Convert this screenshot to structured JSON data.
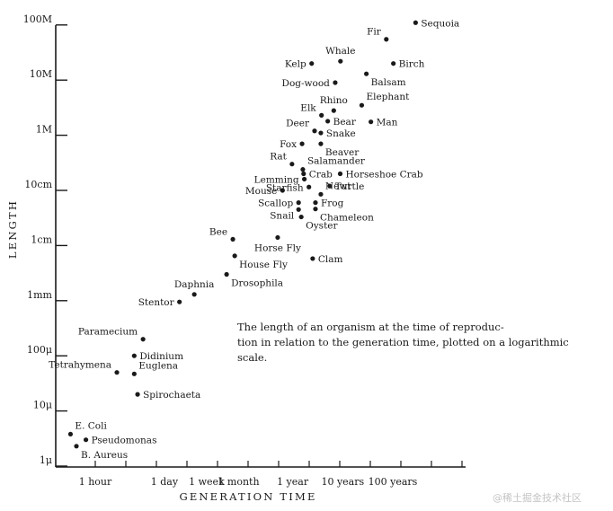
{
  "chart_data": {
    "type": "scatter",
    "xlabel": "GENERATION TIME",
    "ylabel": "LENGTH",
    "xscale": "log",
    "yscale": "log",
    "xlim_hours": [
      0.3,
      1500000
    ],
    "ylim_meters": [
      1e-06,
      100
    ],
    "x_ticks": [
      {
        "label": "1 hour",
        "hours": 1
      },
      {
        "label": "1 day",
        "hours": 24
      },
      {
        "label": "1 week",
        "hours": 168
      },
      {
        "label": "1 month",
        "hours": 730
      },
      {
        "label": "1 year",
        "hours": 8760
      },
      {
        "label": "10 years",
        "hours": 87600
      },
      {
        "label": "100 years",
        "hours": 876000
      }
    ],
    "y_ticks": [
      {
        "label": "1μ",
        "meters": 1e-06
      },
      {
        "label": "10μ",
        "meters": 1e-05
      },
      {
        "label": "100μ",
        "meters": 0.0001
      },
      {
        "label": "1mm",
        "meters": 0.001
      },
      {
        "label": "1cm",
        "meters": 0.01
      },
      {
        "label": "10cm",
        "meters": 0.1
      },
      {
        "label": "1M",
        "meters": 1
      },
      {
        "label": "10M",
        "meters": 10
      },
      {
        "label": "100M",
        "meters": 100
      }
    ],
    "points": [
      {
        "name": "Sequoia",
        "hours": 2500000,
        "meters": 110,
        "label_pos": "right"
      },
      {
        "name": "Fir",
        "hours": 650000,
        "meters": 55,
        "label_pos": "left-up"
      },
      {
        "name": "Birch",
        "hours": 900000,
        "meters": 20,
        "label_pos": "right"
      },
      {
        "name": "Whale",
        "hours": 79000,
        "meters": 22,
        "label_pos": "above"
      },
      {
        "name": "Kelp",
        "hours": 21000,
        "meters": 20,
        "label_pos": "left"
      },
      {
        "name": "Balsam",
        "hours": 260000,
        "meters": 13,
        "label_pos": "right-down"
      },
      {
        "name": "Dog-wood",
        "hours": 62000,
        "meters": 9,
        "label_pos": "left"
      },
      {
        "name": "Elephant",
        "hours": 210000,
        "meters": 3.5,
        "label_pos": "right-up"
      },
      {
        "name": "Rhino",
        "hours": 58000,
        "meters": 2.8,
        "label_pos": "above"
      },
      {
        "name": "Elk",
        "hours": 33000,
        "meters": 2.3,
        "label_pos": "left-up"
      },
      {
        "name": "Bear",
        "hours": 44000,
        "meters": 1.8,
        "label_pos": "right"
      },
      {
        "name": "Man",
        "hours": 320000,
        "meters": 1.75,
        "label_pos": "right"
      },
      {
        "name": "Deer",
        "hours": 24000,
        "meters": 1.2,
        "label_pos": "left-up"
      },
      {
        "name": "Snake",
        "hours": 32000,
        "meters": 1.1,
        "label_pos": "right"
      },
      {
        "name": "Fox",
        "hours": 13500,
        "meters": 0.7,
        "label_pos": "left"
      },
      {
        "name": "Beaver",
        "hours": 32000,
        "meters": 0.7,
        "label_pos": "right-down"
      },
      {
        "name": "Rat",
        "hours": 8500,
        "meters": 0.3,
        "label_pos": "left-up"
      },
      {
        "name": "Salamander",
        "hours": 14000,
        "meters": 0.24,
        "label_pos": "right-up"
      },
      {
        "name": "Crab",
        "hours": 14500,
        "meters": 0.2,
        "label_pos": "right"
      },
      {
        "name": "Horseshoe Crab",
        "hours": 78000,
        "meters": 0.2,
        "label_pos": "right"
      },
      {
        "name": "Lemming",
        "hours": 15000,
        "meters": 0.16,
        "label_pos": "left"
      },
      {
        "name": "Turtle",
        "hours": 48000,
        "meters": 0.12,
        "label_pos": "right"
      },
      {
        "name": "Starfish",
        "hours": 18500,
        "meters": 0.115,
        "label_pos": "left"
      },
      {
        "name": "Mouse",
        "hours": 5500,
        "meters": 0.1,
        "label_pos": "left"
      },
      {
        "name": "Newt",
        "hours": 32000,
        "meters": 0.085,
        "label_pos": "right-up"
      },
      {
        "name": "Scallop",
        "hours": 11500,
        "meters": 0.06,
        "label_pos": "left"
      },
      {
        "name": "Frog",
        "hours": 25000,
        "meters": 0.06,
        "label_pos": "right"
      },
      {
        "name": "Snail",
        "hours": 11500,
        "meters": 0.045,
        "label_pos": "left-down"
      },
      {
        "name": "Chameleon",
        "hours": 25000,
        "meters": 0.046,
        "label_pos": "right-down"
      },
      {
        "name": "Oyster",
        "hours": 13000,
        "meters": 0.033,
        "label_pos": "right-down"
      },
      {
        "name": "Bee",
        "hours": 560,
        "meters": 0.013,
        "label_pos": "left-up"
      },
      {
        "name": "Horse Fly",
        "hours": 4400,
        "meters": 0.014,
        "label_pos": "below"
      },
      {
        "name": "House Fly",
        "hours": 610,
        "meters": 0.0065,
        "label_pos": "right-down"
      },
      {
        "name": "Clam",
        "hours": 22000,
        "meters": 0.0058,
        "label_pos": "right"
      },
      {
        "name": "Drosophila",
        "hours": 420,
        "meters": 0.003,
        "label_pos": "right-down"
      },
      {
        "name": "Daphnia",
        "hours": 95,
        "meters": 0.0013,
        "label_pos": "above"
      },
      {
        "name": "Stentor",
        "hours": 48,
        "meters": 0.00095,
        "label_pos": "left"
      },
      {
        "name": "Paramecium",
        "hours": 9,
        "meters": 0.0002,
        "label_pos": "left-up"
      },
      {
        "name": "Didinium",
        "hours": 6,
        "meters": 0.0001,
        "label_pos": "right"
      },
      {
        "name": "Tetrahymena",
        "hours": 2.7,
        "meters": 5e-05,
        "label_pos": "left-up"
      },
      {
        "name": "Euglena",
        "hours": 6,
        "meters": 4.7e-05,
        "label_pos": "right-up"
      },
      {
        "name": "Spirochaeta",
        "hours": 7,
        "meters": 2e-05,
        "label_pos": "right"
      },
      {
        "name": "E. Coli",
        "hours": 0.32,
        "meters": 3.8e-06,
        "label_pos": "right-up"
      },
      {
        "name": "Pseudomonas",
        "hours": 0.65,
        "meters": 3e-06,
        "label_pos": "right"
      },
      {
        "name": "B. Aureus",
        "hours": 0.42,
        "meters": 2.3e-06,
        "label_pos": "right-down"
      }
    ]
  },
  "caption": "The length of an organism at the time of reproduc-\ntion in relation to the generation time, plotted on a logarithmic\nscale.",
  "watermark": "@稀土掘金技术社区",
  "colors": {
    "ink": "#1a1a1a",
    "watermark": "#c4c4c4"
  }
}
